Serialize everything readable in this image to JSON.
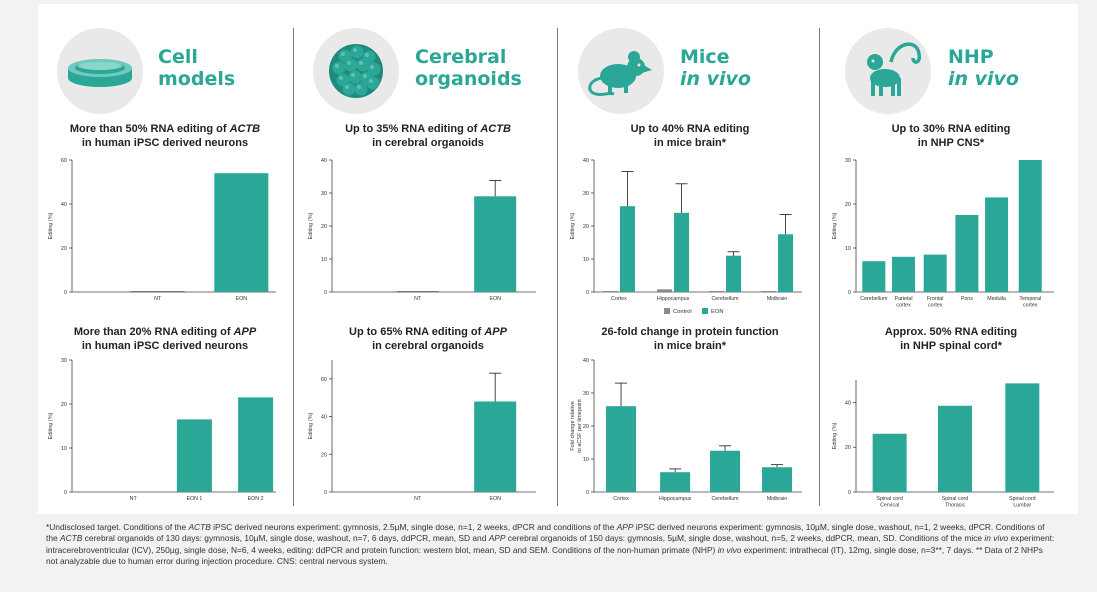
{
  "colors": {
    "accent": "#2aa796",
    "bar": "#2aa796",
    "control": "#8a8a8a",
    "icon_bg": "#e9e9e9",
    "divider": "#7a7a7a"
  },
  "columns": [
    {
      "icon": "petri-dish-icon",
      "title_line1": "Cell",
      "title_line2": "models",
      "title_line2_italic": false
    },
    {
      "icon": "organoid-icon",
      "title_line1": "Cerebral",
      "title_line2": "organoids",
      "title_line2_italic": false
    },
    {
      "icon": "mouse-icon",
      "title_line1": "Mice",
      "title_line2": "in vivo",
      "title_line2_italic": true
    },
    {
      "icon": "monkey-icon",
      "title_line1": "NHP",
      "title_line2": "in vivo",
      "title_line2_italic": true
    }
  ],
  "chart_data": [
    {
      "id": "c11",
      "type": "bar",
      "title_line1": "More than 50% RNA editing of ",
      "title_line1_italic": "ACTB",
      "title_line2": "in human iPSC derived neurons",
      "ylabel": "Editing (%)",
      "ylim": [
        0,
        60
      ],
      "yticks": [
        0,
        20,
        40,
        60
      ],
      "categories": [
        "NT",
        "EON"
      ],
      "values": [
        0.3,
        54
      ]
    },
    {
      "id": "c12",
      "type": "bar",
      "title_line1": "Up to 35% RNA editing of ",
      "title_line1_italic": "ACTB",
      "title_line2": "in cerebral organoids",
      "ylabel": "Editing (%)",
      "ylim": [
        0,
        40
      ],
      "yticks": [
        0,
        10,
        20,
        30,
        40
      ],
      "categories": [
        "NT",
        "EON"
      ],
      "values": [
        0.2,
        29
      ],
      "errors": [
        0,
        4.8
      ]
    },
    {
      "id": "c13",
      "type": "bar",
      "title_line1": "Up to 40% RNA editing",
      "title_line1_italic": "",
      "title_line2": "in mice brain*",
      "ylabel": "Editing (%)",
      "ylim": [
        0,
        40
      ],
      "yticks": [
        0,
        10,
        20,
        30,
        40
      ],
      "categories": [
        "Cortex",
        "Hippocampus",
        "Cerebellum",
        "Midbrain"
      ],
      "series": [
        {
          "name": "Control",
          "values": [
            0.3,
            0.8,
            0.3,
            0.3
          ]
        },
        {
          "name": "EON",
          "values": [
            26,
            24,
            11,
            17.5
          ],
          "errors": [
            10.5,
            8.8,
            1.2,
            6
          ]
        }
      ],
      "legend": "bottom"
    },
    {
      "id": "c14",
      "type": "bar",
      "title_line1": "Up to 30% RNA editing",
      "title_line1_italic": "",
      "title_line2": "in NHP CNS*",
      "ylabel": "Editing (%)",
      "ylim": [
        0,
        30
      ],
      "yticks": [
        0,
        10,
        20,
        30
      ],
      "categories": [
        "Cerebellum",
        "Parietal cortex",
        "Frontal cortex",
        "Pons",
        "Medulla",
        "Temporal cortex"
      ],
      "values": [
        7,
        8,
        8.5,
        17.5,
        21.5,
        30
      ]
    },
    {
      "id": "c21",
      "type": "bar",
      "title_line1": "More than 20% RNA editing of ",
      "title_line1_italic": "APP",
      "title_line2": "in human iPSC derived neurons",
      "ylabel": "Editing (%)",
      "ylim": [
        0,
        30
      ],
      "yticks": [
        0,
        10,
        20,
        30
      ],
      "categories": [
        "NT",
        "EON 1",
        "EON 2"
      ],
      "values": [
        0,
        16.5,
        21.5
      ]
    },
    {
      "id": "c22",
      "type": "bar",
      "title_line1": "Up to 65% RNA editing of ",
      "title_line1_italic": "APP",
      "title_line2": "in cerebral organoids",
      "ylabel": "Editing (%)",
      "ylim": [
        0,
        70
      ],
      "yticks": [
        0,
        20,
        40,
        60
      ],
      "categories": [
        "NT",
        "EON"
      ],
      "values": [
        0,
        48
      ],
      "errors": [
        0,
        15
      ]
    },
    {
      "id": "c23",
      "type": "bar",
      "title_line1": "26-fold change in protein function",
      "title_line1_italic": "",
      "title_line2": "in mice brain*",
      "ylabel": "Fold change relative to aCSF per timepoint",
      "ylim": [
        0,
        40
      ],
      "yticks": [
        0,
        10,
        20,
        30,
        40
      ],
      "categories": [
        "Cortex",
        "Hippocampus",
        "Cerebellum",
        "Midbrain"
      ],
      "values": [
        26,
        6,
        12.5,
        7.5
      ],
      "errors": [
        7,
        1,
        1.5,
        0.8
      ]
    },
    {
      "id": "c24",
      "type": "bar",
      "title_line1": "Approx. 50% RNA editing",
      "title_line1_italic": "",
      "title_line2": "in NHP spinal cord*",
      "ylabel": "Editing (%)",
      "ylim": [
        0,
        50
      ],
      "yticks": [
        0,
        20,
        40
      ],
      "categories": [
        "Spinal cord Cervical",
        "Spinal cord Thoracic",
        "Spinal cord Lumbar"
      ],
      "values": [
        26,
        38.5,
        48.5
      ]
    }
  ],
  "footnote": [
    {
      "t": "*Undisclosed target. Conditions of the "
    },
    {
      "t": "ACTB",
      "i": true
    },
    {
      "t": " iPSC derived neurons experiment: gymnosis, 2.5µM, single dose, n=1, 2 weeks, dPCR and conditions of the "
    },
    {
      "t": "APP",
      "i": true
    },
    {
      "t": " iPSC derived neurons experiment: gymnosis, 10µM, single dose, washout, n=1, 2 weeks, dPCR. Conditions of the "
    },
    {
      "t": "ACTB",
      "i": true
    },
    {
      "t": " cerebral organoids of 130 days: gymnosis, 10µM, single dose, washout, n=7, 6 days, ddPCR, mean, SD and "
    },
    {
      "t": "APP",
      "i": true
    },
    {
      "t": " cerebral organoids of 150 days: gymnosis, 5µM, single dose, washout, n=5, 2 weeks, ddPCR, mean, SD. Conditions of the mice "
    },
    {
      "t": "in vivo",
      "i": true
    },
    {
      "t": " experiment: intracerebroventricular (ICV), 250µg, single dose, N=6, 4 weeks, editing: ddPCR and protein function: western blot, mean, SD and SEM. Conditions of the non-human primate (NHP) "
    },
    {
      "t": "in vivo",
      "i": true
    },
    {
      "t": " experiment: intrathecal (IT), 12mg, single dose, n=3**, 7 days. ** Data of 2 NHPs not analyzable due to human error during injection procedure. CNS: central nervous system."
    }
  ]
}
